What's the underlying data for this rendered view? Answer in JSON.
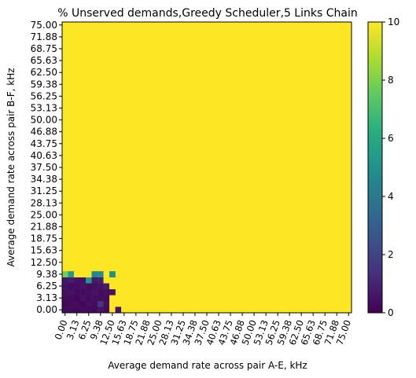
{
  "chart_data": {
    "type": "heatmap",
    "title": "% Unserved demands,Greedy Scheduler,5 Links Chain",
    "xlabel": "Average demand rate across pair A-E, kHz",
    "ylabel": "Average demand rate across pair B-F, kHz",
    "x_tick_labels": [
      "0.00",
      "3.13",
      "6.25",
      "9.38",
      "12.50",
      "15.63",
      "18.75",
      "21.88",
      "25.00",
      "28.13",
      "31.25",
      "34.38",
      "37.50",
      "40.63",
      "43.75",
      "46.88",
      "50.00",
      "53.13",
      "56.25",
      "59.38",
      "62.50",
      "65.63",
      "68.75",
      "71.88",
      "75.00"
    ],
    "y_tick_labels": [
      "0.00",
      "3.13",
      "6.25",
      "9.38",
      "12.50",
      "15.63",
      "18.75",
      "21.88",
      "25.00",
      "28.13",
      "31.25",
      "34.38",
      "37.50",
      "40.63",
      "43.75",
      "46.88",
      "50.00",
      "53.13",
      "56.25",
      "59.38",
      "62.50",
      "65.63",
      "68.75",
      "71.88",
      "75.00"
    ],
    "grid": {
      "nx": 49,
      "ny": 49,
      "x_range": [
        0,
        75
      ],
      "y_range": [
        0,
        75
      ]
    },
    "default_value": 10,
    "low_region": [
      {
        "x": 0,
        "y": 0,
        "values": [
          0.3,
          0.3,
          0.2,
          0.3,
          0.3,
          0.2,
          0.5,
          0.3,
          10,
          0.5,
          10
        ]
      },
      {
        "x": 0,
        "y": 1,
        "values": [
          0.2,
          0.3,
          0.3,
          0.2,
          0.4,
          0.3,
          1.5,
          0.4,
          10
        ]
      },
      {
        "x": 0,
        "y": 2,
        "values": [
          0.3,
          0.3,
          0.2,
          0.5,
          0.3,
          0.4,
          0.3,
          0.3,
          10
        ]
      },
      {
        "x": 0,
        "y": 3,
        "values": [
          0.4,
          0.5,
          0.3,
          0.3,
          0.4,
          0.5,
          0.3,
          0.4,
          0.5
        ]
      },
      {
        "x": 0,
        "y": 4,
        "values": [
          0.5,
          0.3,
          0.4,
          0.5,
          0.3,
          0.4,
          0.5,
          0.8,
          10
        ]
      },
      {
        "x": 0,
        "y": 5,
        "values": [
          0.6,
          0.8,
          0.5,
          0.5,
          5.2,
          0.7,
          0.9,
          10
        ]
      },
      {
        "x": 0,
        "y": 6,
        "values": [
          7.8,
          5.4,
          10,
          10,
          10,
          4.6,
          4.8,
          10,
          5.0
        ]
      }
    ],
    "colorbar": {
      "vmin": 0,
      "vmax": 10,
      "ticks": [
        "0",
        "2",
        "4",
        "6",
        "8",
        "10"
      ],
      "colormap": "viridis"
    }
  }
}
